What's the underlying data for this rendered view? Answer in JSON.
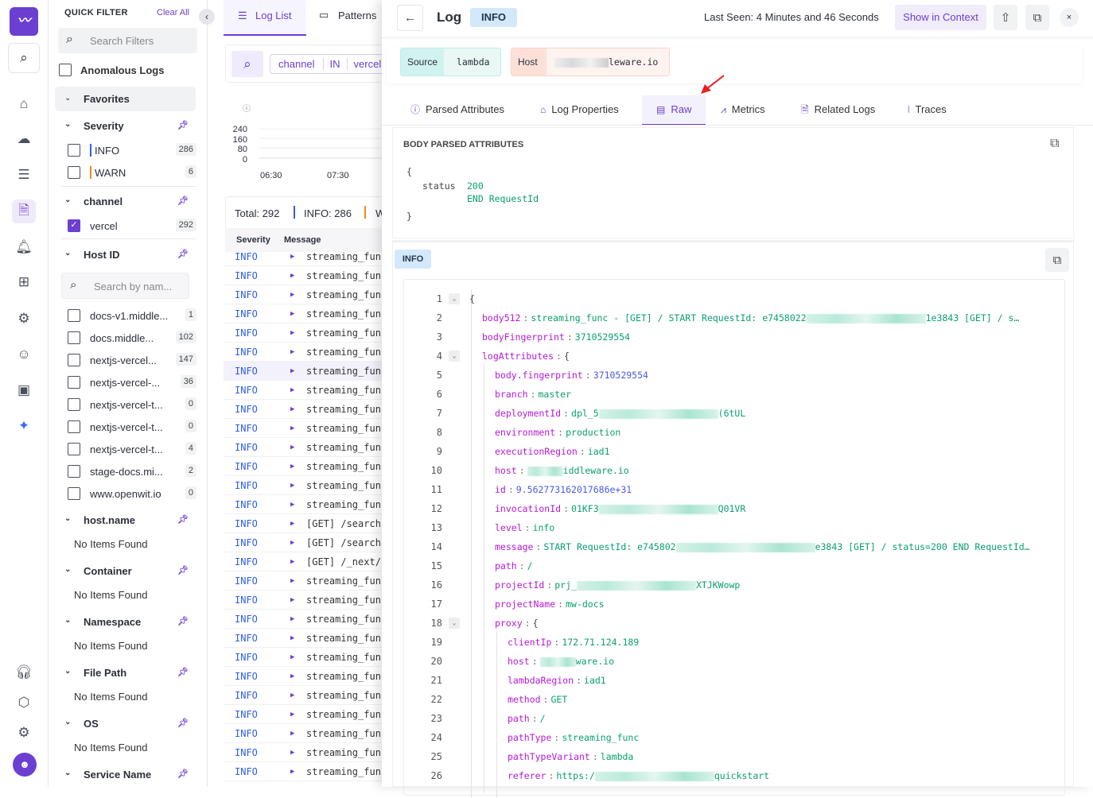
{
  "rail": {
    "icons": [
      "logo-icon",
      "search-icon",
      "home-icon",
      "infrastructure-icon",
      "apm-icon",
      "logs-icon",
      "alerts-icon",
      "dashboard-icon",
      "synthetic-icon",
      "rum-icon",
      "settings-chip-icon",
      "ai-icon",
      "support-icon",
      "integrations-icon",
      "gear-icon",
      "avatar"
    ]
  },
  "filters": {
    "title": "QUICK FILTER",
    "clear": "Clear All",
    "search_placeholder": "Search Filters",
    "anomalous": "Anomalous Logs",
    "favorites": "Favorites",
    "severity": {
      "label": "Severity",
      "items": [
        {
          "label": "INFO",
          "count": "286",
          "color": "#2f5ee8"
        },
        {
          "label": "WARN",
          "count": "6",
          "color": "#f08a1c"
        }
      ]
    },
    "channel": {
      "label": "channel",
      "items": [
        {
          "label": "vercel",
          "count": "292",
          "checked": true
        }
      ]
    },
    "host_id": {
      "label": "Host ID",
      "search_placeholder": "Search by nam...",
      "items": [
        {
          "label": "docs-v1.middle...",
          "count": "1"
        },
        {
          "label": "docs.middle...",
          "count": "102"
        },
        {
          "label": "nextjs-vercel...",
          "count": "147"
        },
        {
          "label": "nextjs-vercel-...",
          "count": "36"
        },
        {
          "label": "nextjs-vercel-t...",
          "count": "0"
        },
        {
          "label": "nextjs-vercel-t...",
          "count": "0"
        },
        {
          "label": "nextjs-vercel-t...",
          "count": "4"
        },
        {
          "label": "stage-docs.mi...",
          "count": "2"
        },
        {
          "label": "www.openwit.io",
          "count": "0"
        }
      ]
    },
    "empty_groups": [
      {
        "label": "host.name",
        "empty": "No Items Found"
      },
      {
        "label": "Container",
        "empty": "No Items Found"
      },
      {
        "label": "Namespace",
        "empty": "No Items Found"
      },
      {
        "label": "File Path",
        "empty": "No Items Found"
      },
      {
        "label": "OS",
        "empty": "No Items Found"
      }
    ],
    "last_group": "Service Name"
  },
  "loglist": {
    "tabs": [
      "Log List",
      "Patterns"
    ],
    "query": [
      "channel",
      "IN",
      "vercel"
    ],
    "chart": {
      "yticks": [
        "240",
        "160",
        "80",
        "0"
      ],
      "xticks": [
        "06:30",
        "07:30"
      ]
    },
    "summary": {
      "total": "Total: 292",
      "info": "INFO: 286",
      "warn": "W"
    },
    "columns": [
      "Severity",
      "Message"
    ],
    "rows": [
      "streaming_fun",
      "streaming_fun",
      "streaming_fun",
      "streaming_fun",
      "streaming_fun",
      "streaming_fun",
      "streaming_fun",
      "streaming_fun",
      "streaming_fun",
      "streaming_fun",
      "streaming_fun",
      "streaming_fun",
      "streaming_fun",
      "streaming_fun",
      "[GET] /search",
      "[GET] /search",
      "[GET] /_next/",
      "streaming_fun",
      "streaming_fun",
      "streaming_fun",
      "streaming_fun",
      "streaming_fun",
      "streaming_fun",
      "streaming_fun",
      "streaming_fun",
      "streaming_fun",
      "streaming_fun",
      "streaming_fun"
    ],
    "row_severity": "INFO"
  },
  "drawer": {
    "title": "Log",
    "level": "INFO",
    "last_seen": "Last Seen: 4 Minutes and 46 Seconds",
    "show_context": "Show in Context",
    "source_label": "Source",
    "source_value": "lambda",
    "host_label": "Host",
    "host_value": "leware.io",
    "tabs": [
      "Parsed Attributes",
      "Log Properties",
      "Raw",
      "Metrics",
      "Related Logs",
      "Traces"
    ],
    "active_tab": "Raw",
    "body_title": "BODY PARSED ATTRIBUTES",
    "body": {
      "open": "{",
      "key": "status",
      "value1": "200",
      "value2": "END RequestId",
      "close": "}"
    },
    "info_badge": "INFO",
    "lines": [
      {
        "n": "1",
        "indent": 0,
        "fold": true,
        "raw": "{"
      },
      {
        "n": "2",
        "indent": 1,
        "key": "body512",
        "pre": "streaming_func - [GET] / START RequestId: e7458022",
        "red": true,
        "post": "1e3843 [GET] / s…"
      },
      {
        "n": "3",
        "indent": 1,
        "key": "bodyFingerprint",
        "pre": "3710529554"
      },
      {
        "n": "4",
        "indent": 1,
        "fold": true,
        "key": "logAttributes",
        "brace": "{"
      },
      {
        "n": "5",
        "indent": 2,
        "key": "body.fingerprint",
        "pre": "3710529554",
        "num": true
      },
      {
        "n": "6",
        "indent": 2,
        "key": "branch",
        "pre": "master"
      },
      {
        "n": "7",
        "indent": 2,
        "key": "deploymentId",
        "pre": "dpl_5",
        "red": true,
        "post": "(6tUL"
      },
      {
        "n": "8",
        "indent": 2,
        "key": "environment",
        "pre": "production"
      },
      {
        "n": "9",
        "indent": 2,
        "key": "executionRegion",
        "pre": "iad1"
      },
      {
        "n": "10",
        "indent": 2,
        "key": "host",
        "pre": "",
        "red": true,
        "post": "iddleware.io"
      },
      {
        "n": "11",
        "indent": 2,
        "key": "id",
        "pre": "9.562773162017686e+31",
        "num": true
      },
      {
        "n": "12",
        "indent": 2,
        "key": "invocationId",
        "pre": "01KF3",
        "red": true,
        "post": "Q01VR"
      },
      {
        "n": "13",
        "indent": 2,
        "key": "level",
        "pre": "info"
      },
      {
        "n": "14",
        "indent": 2,
        "key": "message",
        "pre": "START RequestId: e745802",
        "red": true,
        "post": "e3843 [GET] / status=200 END RequestId…"
      },
      {
        "n": "15",
        "indent": 2,
        "key": "path",
        "pre": "/"
      },
      {
        "n": "16",
        "indent": 2,
        "key": "projectId",
        "pre": "prj_",
        "red": true,
        "post": "XTJKWowp"
      },
      {
        "n": "17",
        "indent": 2,
        "key": "projectName",
        "pre": "mw-docs"
      },
      {
        "n": "18",
        "indent": 2,
        "fold": true,
        "key": "proxy",
        "brace": "{"
      },
      {
        "n": "19",
        "indent": 3,
        "key": "clientIp",
        "pre": "172.71.124.189"
      },
      {
        "n": "20",
        "indent": 3,
        "key": "host",
        "pre": "",
        "red": true,
        "post": "ware.io"
      },
      {
        "n": "21",
        "indent": 3,
        "key": "lambdaRegion",
        "pre": "iad1"
      },
      {
        "n": "22",
        "indent": 3,
        "key": "method",
        "pre": "GET"
      },
      {
        "n": "23",
        "indent": 3,
        "key": "path",
        "pre": "/"
      },
      {
        "n": "24",
        "indent": 3,
        "key": "pathType",
        "pre": "streaming_func"
      },
      {
        "n": "25",
        "indent": 3,
        "key": "pathTypeVariant",
        "pre": "lambda"
      },
      {
        "n": "26",
        "indent": 3,
        "key": "referer",
        "pre": "https:/",
        "red": true,
        "post": "quickstart"
      }
    ]
  },
  "colors": {
    "accent": "#6b3fd1",
    "info": "#2f5ee8",
    "warn": "#f08a1c",
    "key": "#b619d6",
    "string": "#0aa06e",
    "number": "#4b59e6"
  }
}
